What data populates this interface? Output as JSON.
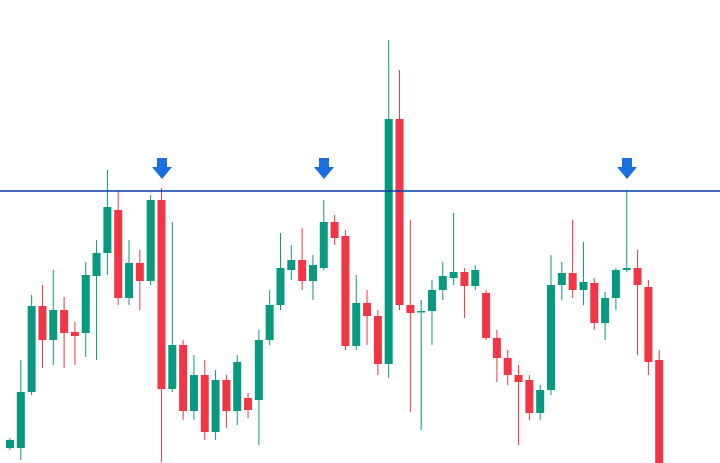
{
  "chart_data": {
    "type": "candlestick",
    "up_color": "#089981",
    "down_color": "#f23645",
    "level_color": "#0a3ea6",
    "ylim": [
      0,
      463
    ],
    "level": 272,
    "open": [
      15,
      15,
      71,
      157,
      123,
      153,
      131,
      130,
      187,
      210,
      253,
      165,
      200,
      182,
      263,
      74,
      118,
      52,
      88,
      31,
      83,
      52,
      65,
      63,
      123,
      158,
      193,
      203,
      182,
      195,
      241,
      227,
      117,
      160,
      147,
      99,
      344,
      158,
      151,
      152,
      173,
      185,
      191,
      177,
      170,
      125,
      105,
      88,
      83,
      50,
      73,
      178,
      190,
      173,
      180,
      140,
      165,
      193,
      195,
      176,
      103
    ],
    "high": [
      25,
      103,
      168,
      178,
      193,
      166,
      141,
      201,
      223,
      293,
      273,
      223,
      213,
      268,
      275,
      241,
      123,
      108,
      103,
      93,
      88,
      108,
      70,
      133,
      173,
      230,
      218,
      235,
      208,
      263,
      248,
      233,
      188,
      173,
      153,
      423,
      393,
      243,
      163,
      183,
      201,
      250,
      195,
      198,
      173,
      133,
      113,
      98,
      88,
      78,
      208,
      201,
      243,
      221,
      185,
      171,
      195,
      273,
      213,
      183,
      113
    ],
    "low": [
      13,
      3,
      68,
      95,
      98,
      95,
      98,
      106,
      103,
      188,
      158,
      158,
      153,
      178,
      1,
      71,
      43,
      43,
      23,
      23,
      35,
      38,
      45,
      18,
      118,
      153,
      183,
      173,
      163,
      193,
      218,
      113,
      113,
      118,
      88,
      85,
      153,
      51,
      33,
      118,
      163,
      178,
      145,
      173,
      123,
      81,
      78,
      18,
      43,
      43,
      68,
      163,
      165,
      158,
      133,
      123,
      153,
      191,
      108,
      88,
      0
    ],
    "close": [
      23,
      71,
      157,
      123,
      153,
      130,
      127,
      188,
      210,
      256,
      165,
      200,
      182,
      263,
      74,
      118,
      52,
      88,
      31,
      83,
      52,
      101,
      53,
      123,
      158,
      195,
      203,
      182,
      198,
      241,
      225,
      117,
      160,
      147,
      99,
      344,
      158,
      150,
      152,
      173,
      187,
      191,
      177,
      193,
      125,
      105,
      88,
      81,
      50,
      73,
      178,
      190,
      173,
      181,
      140,
      165,
      193,
      195,
      178,
      101,
      0
    ]
  }
}
